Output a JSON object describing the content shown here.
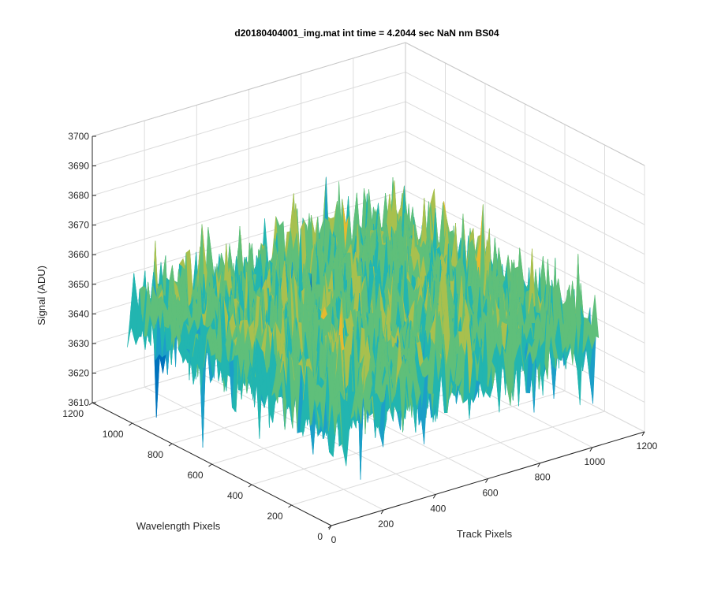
{
  "chart_data": {
    "type": "surface",
    "title": "d20180404001_img.mat int time = 4.2044 sec  NaN nm BS04",
    "xlabel": "Track Pixels",
    "ylabel": "Wavelength Pixels",
    "zlabel": "Signal (ADU)",
    "xlim": [
      0,
      1200
    ],
    "ylim": [
      0,
      1200
    ],
    "zlim": [
      3610,
      3700
    ],
    "x_ticks": [
      0,
      200,
      400,
      600,
      800,
      1000,
      1200
    ],
    "y_ticks": [
      0,
      200,
      400,
      600,
      800,
      1000,
      1200
    ],
    "z_ticks": [
      3610,
      3620,
      3630,
      3640,
      3650,
      3660,
      3670,
      3680,
      3690,
      3700
    ],
    "x_data_range": [
      0,
      1024
    ],
    "y_data_range": [
      0,
      1024
    ],
    "signal_mean": 3648,
    "signal_std": 9,
    "grid": true,
    "colormap": [
      "#0072bd",
      "#1c9fc8",
      "#22b5b0",
      "#5fbf7a",
      "#a8c04e",
      "#e5ba2f"
    ]
  }
}
